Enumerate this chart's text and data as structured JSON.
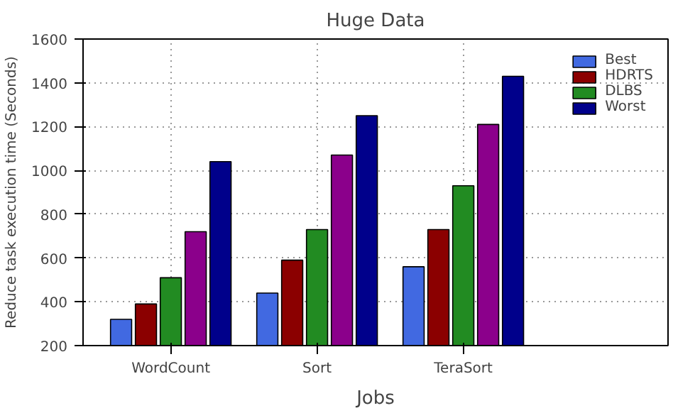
{
  "chart_data": {
    "type": "bar",
    "title": "Huge Data",
    "xlabel": "Jobs",
    "ylabel": "Reduce task execution time (Seconds)",
    "categories": [
      "WordCount",
      "Sort",
      "TeraSort"
    ],
    "series": [
      {
        "name": "Best",
        "color": "#4169e1",
        "values": [
          320,
          440,
          560
        ]
      },
      {
        "name": "HDRTS",
        "color": "#8b0000",
        "values": [
          390,
          590,
          730
        ]
      },
      {
        "name": "DLBS",
        "color": "#228b22",
        "values": [
          510,
          730,
          930
        ]
      },
      {
        "color": "#8b008b",
        "values": [
          720,
          1070,
          1210
        ]
      },
      {
        "name": "Worst",
        "color": "#00008b",
        "values": [
          1040,
          1250,
          1430
        ]
      }
    ],
    "ylim": [
      200,
      1600
    ],
    "yticks": [
      200,
      400,
      600,
      800,
      1000,
      1200,
      1400,
      1600
    ],
    "grid": true,
    "legend": "top right"
  }
}
